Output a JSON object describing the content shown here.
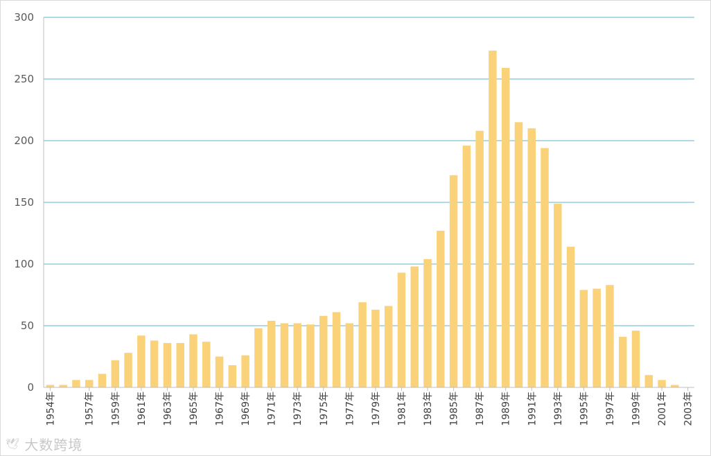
{
  "chart_data": {
    "type": "bar",
    "title": "",
    "xlabel": "",
    "ylabel": "",
    "ylim": [
      0,
      300
    ],
    "yticks": [
      0,
      50,
      100,
      150,
      200,
      250,
      300
    ],
    "grid": true,
    "bar_color": "#FAD27A",
    "grid_color": "#7EC4DA",
    "categories": [
      "1954年",
      "1955年",
      "1956年",
      "1957年",
      "1958年",
      "1959年",
      "1960年",
      "1961年",
      "1962年",
      "1963年",
      "1964年",
      "1965年",
      "1966年",
      "1967年",
      "1968年",
      "1969年",
      "1970年",
      "1971年",
      "1972年",
      "1973年",
      "1974年",
      "1975年",
      "1976年",
      "1977年",
      "1978年",
      "1979年",
      "1980年",
      "1981年",
      "1982年",
      "1983年",
      "1984年",
      "1985年",
      "1986年",
      "1987年",
      "1988年",
      "1989年",
      "1990年",
      "1991年",
      "1992年",
      "1993年",
      "1994年",
      "1995年",
      "1996年",
      "1997年",
      "1998年",
      "1999年",
      "2000年",
      "2001年",
      "2002年",
      "2003年"
    ],
    "tick_labels": [
      "1954年",
      "1957年",
      "1959年",
      "1961年",
      "1963年",
      "1965年",
      "1967年",
      "1969年",
      "1971年",
      "1973年",
      "1975年",
      "1977年",
      "1979年",
      "1981年",
      "1983年",
      "1985年",
      "1987年",
      "1989年",
      "1991年",
      "1993年",
      "1995年",
      "1997年",
      "1999年",
      "2001年",
      "2003年"
    ],
    "values": [
      2,
      2,
      6,
      6,
      11,
      22,
      28,
      42,
      38,
      36,
      36,
      43,
      37,
      25,
      18,
      26,
      48,
      54,
      52,
      52,
      51,
      58,
      61,
      52,
      69,
      63,
      66,
      93,
      98,
      104,
      127,
      172,
      196,
      208,
      273,
      259,
      215,
      210,
      194,
      149,
      114,
      79,
      80,
      83,
      41,
      46,
      10,
      6,
      2,
      0
    ]
  },
  "watermark": {
    "logo": "🕊",
    "text": "大数跨境"
  }
}
